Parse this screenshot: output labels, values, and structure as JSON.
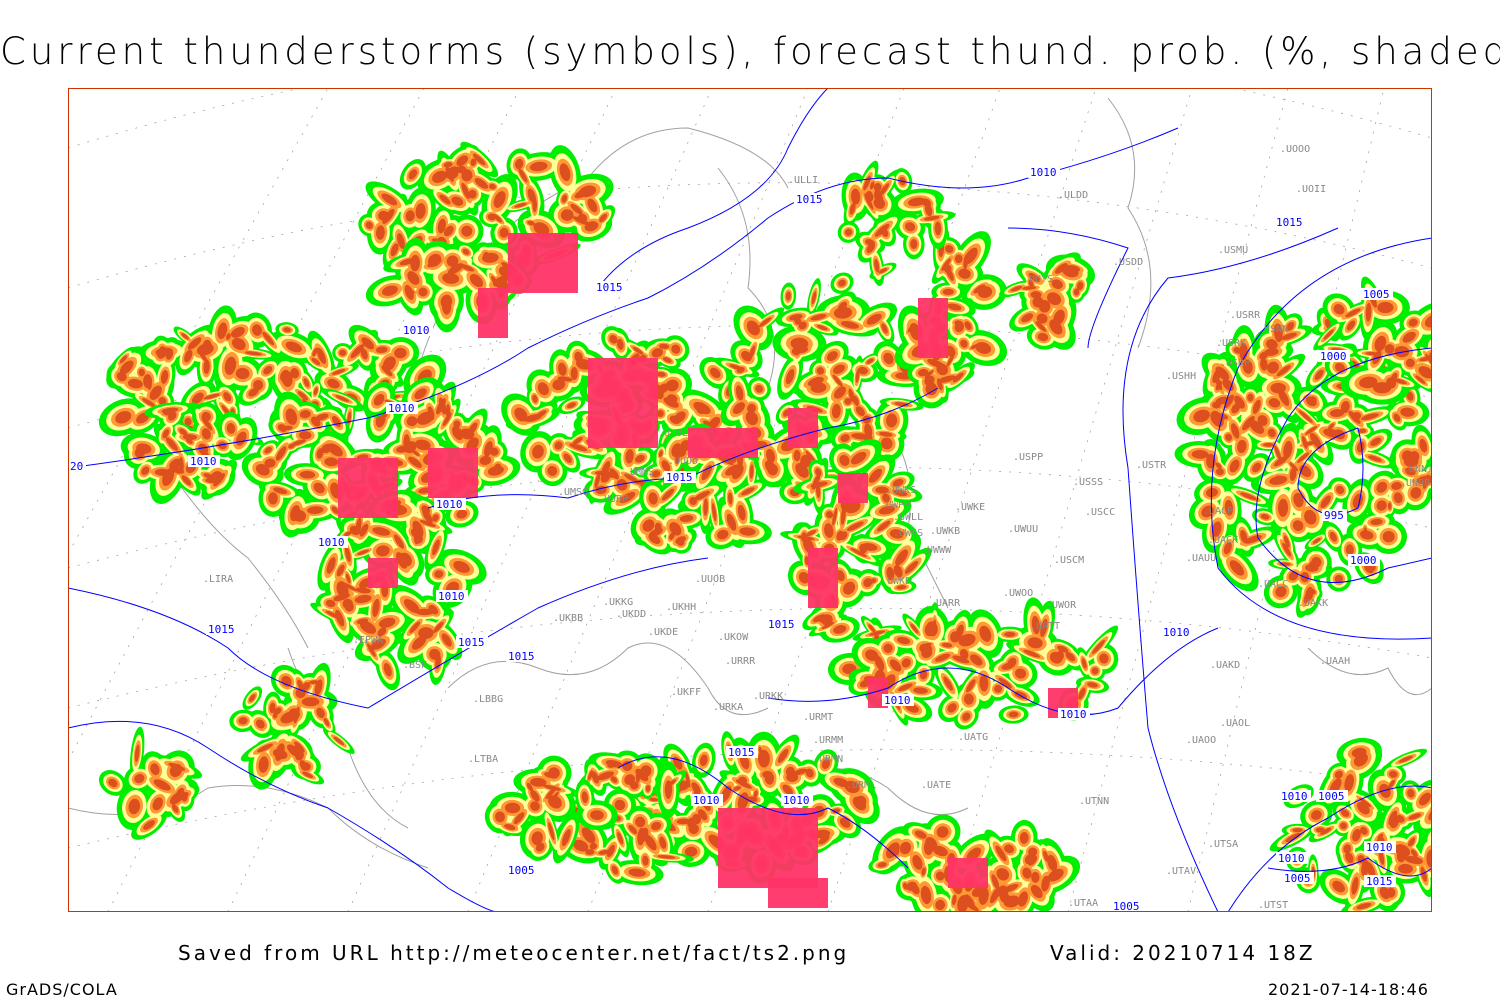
{
  "title": "Current thunderstorms (symbols), forecast thund. prob. (%, shaded)",
  "footer": {
    "saved_from": "Saved from URL http://meteocenter.net/fact/ts2.png",
    "valid": "Valid: 20210714 18Z",
    "software": "GrADS/COLA",
    "timestamp": "2021-07-14-18:46"
  },
  "colors": {
    "prob_low": "#00ee00",
    "prob_mid": "#ffff99",
    "prob_high": "#ff9933",
    "prob_very_high": "#dd4f1f",
    "thunderstorm_symbols": "#ff3366",
    "isobars": "#0000ff",
    "coastlines": "#a0a0a0",
    "frame": "#cc3300"
  },
  "isobar_labels": [
    "1010",
    "1015",
    "1015",
    "1010",
    "1010",
    "1015",
    "1010",
    "1010",
    "1015",
    "1015",
    "1010",
    "1015",
    "1015",
    "1015",
    "1010",
    "1010",
    "1010",
    "1010",
    "1010",
    "1005",
    "1010",
    "1005",
    "1000",
    "995",
    "1000",
    "1010",
    "1005",
    "1010",
    "1005",
    "1010",
    "1015",
    "1015",
    "1005",
    "20"
  ],
  "stations": [
    "ULLI",
    "ULDD",
    "UUYS",
    "USDD",
    "USMU",
    "UOOO",
    "UOII",
    "USRR",
    "USRK",
    "USNN",
    "USRP",
    "USHH",
    "USPP",
    "USTR",
    "USSS",
    "USCC",
    "UWKS",
    "UWKE",
    "UWKB",
    "UWUU",
    "UWLL",
    "UWWW",
    "USCM",
    "UAUU",
    "UACP",
    "UACK",
    "UACC",
    "UAKK",
    "UNBB",
    "UNNT",
    "UWOO",
    "UWOR",
    "UATT",
    "UARR",
    "UUOB",
    "UKKG",
    "UKHH",
    "UKDD",
    "UKDE",
    "UKOW",
    "URRR",
    "UKFF",
    "URKA",
    "URKK",
    "URMT",
    "URMM",
    "URMN",
    "URML",
    "UATE",
    "UATG",
    "UAOL",
    "UAOO",
    "UTNN",
    "UAKD",
    "UAAH",
    "UTSA",
    "UTAV",
    "UTAA",
    "UTST",
    "UMMS",
    "UUDD",
    "ULOL",
    "UWPP",
    "UWSS",
    "UWKD",
    "UMSG",
    "UUBP",
    "UKBB",
    "LIRA",
    "BSF",
    "LBBG",
    "LTBA",
    "EPWA"
  ]
}
